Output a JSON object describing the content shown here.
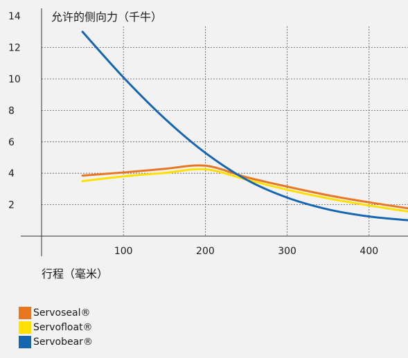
{
  "chart_data": {
    "type": "line",
    "ylabel": "允许的侧向力（千牛）",
    "xlabel": "行程（毫米）",
    "xlim": [
      0,
      450
    ],
    "ylim": [
      0,
      14
    ],
    "xticks": [
      100,
      200,
      300,
      400
    ],
    "yticks": [
      2,
      4,
      6,
      8,
      10,
      12,
      14
    ],
    "grid": true,
    "legend_position": "bottom-left",
    "series": [
      {
        "name": "Servoseal®",
        "color": "#e87722",
        "x": [
          50,
          100,
          150,
          200,
          250,
          300,
          350,
          400,
          450
        ],
        "y": [
          3.85,
          4.05,
          4.28,
          4.48,
          3.75,
          3.15,
          2.6,
          2.15,
          1.75
        ]
      },
      {
        "name": "Servofloat®",
        "color": "#ffe000",
        "x": [
          50,
          100,
          150,
          200,
          250,
          300,
          350,
          400,
          450
        ],
        "y": [
          3.5,
          3.8,
          4.02,
          4.25,
          3.6,
          2.95,
          2.4,
          1.95,
          1.55
        ]
      },
      {
        "name": "Servobear®",
        "color": "#1565b0",
        "x": [
          50,
          100,
          150,
          200,
          250,
          300,
          350,
          400,
          450
        ],
        "y": [
          13.0,
          10.1,
          7.5,
          5.3,
          3.6,
          2.45,
          1.7,
          1.25,
          1.0
        ]
      }
    ]
  }
}
